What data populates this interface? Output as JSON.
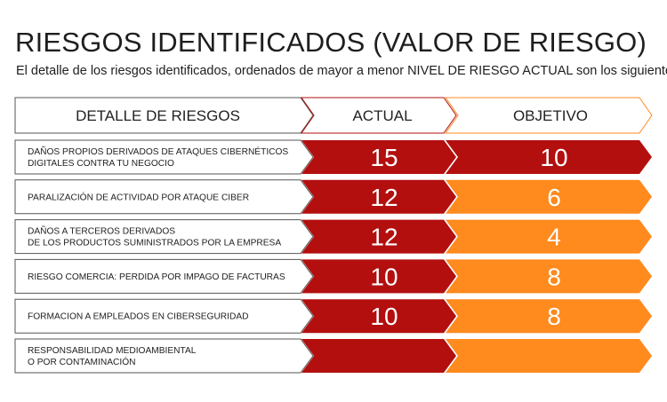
{
  "title": "RIESGOS IDENTIFICADOS (VALOR DE RIESGO)",
  "subtitle": "El detalle de los riesgos identificados, ordenados de mayor a menor NIVEL DE RIESGO ACTUAL son los siguientes:",
  "headers": {
    "detail": "DETALLE DE RIESGOS",
    "actual": "ACTUAL",
    "objective": "OBJETIVO"
  },
  "colors": {
    "actual_fill": "#b30f0f",
    "objective_fill": "#ff8a1e",
    "objective_high": "#b30f0f",
    "header_actual_border": "#b30f0f",
    "header_objective_border": "#ff8a1e",
    "detail_border": "#555555"
  },
  "rows": [
    {
      "label": [
        "DAÑOS PROPIOS DERIVADOS DE ATAQUES CIBERNÉTICOS",
        "DIGITALES CONTRA TU NEGOCIO"
      ],
      "actual": "15",
      "objective": "10",
      "objective_level": "high"
    },
    {
      "label": [
        "PARALIZACIÓN DE ACTIVIDAD POR ATAQUE CIBER"
      ],
      "actual": "12",
      "objective": "6",
      "objective_level": "medium"
    },
    {
      "label": [
        "DAÑOS A TERCEROS DERIVADOS",
        "DE LOS PRODUCTOS SUMINISTRADOS POR LA EMPRESA"
      ],
      "actual": "12",
      "objective": "4",
      "objective_level": "medium"
    },
    {
      "label": [
        "RIESGO COMERCIA: PERDIDA POR IMPAGO DE FACTURAS"
      ],
      "actual": "10",
      "objective": "8",
      "objective_level": "medium"
    },
    {
      "label": [
        "FORMACION A EMPLEADOS EN CIBERSEGURIDAD"
      ],
      "actual": "10",
      "objective": "8",
      "objective_level": "medium"
    },
    {
      "label": [
        "RESPONSABILIDAD MEDIOAMBIENTAL",
        "O POR CONTAMINACIÓN"
      ],
      "actual": "",
      "objective": "",
      "objective_level": "medium"
    }
  ]
}
